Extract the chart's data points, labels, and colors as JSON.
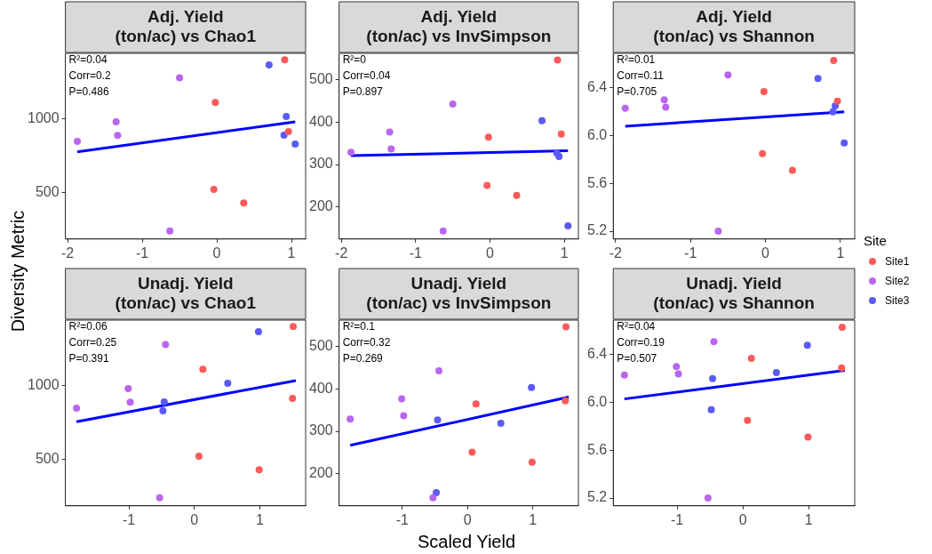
{
  "chart_data": [
    {
      "type": "scatter",
      "title": "Adj. Yield\n(ton/ac) vs Chao1",
      "ylabel": "Diversity Metric",
      "marker": "circle",
      "xlim": [
        -2.03,
        1.19
      ],
      "xticks": [
        -2,
        -1,
        0,
        1
      ],
      "ylim": [
        185,
        1445
      ],
      "yticks": [
        500,
        1000
      ],
      "annotations": [
        "R²=0.04",
        "Corr=0.2",
        "P=0.486"
      ],
      "series": [
        {
          "color": "#fb5a5a",
          "x": [
            -0.02,
            -0.04,
            0.36,
            0.91,
            0.96
          ],
          "values": [
            1112,
            521,
            430,
            1402,
            914
          ]
        },
        {
          "color": "#b966f0",
          "x": [
            -1.87,
            -1.35,
            -1.33,
            -0.5,
            -0.63
          ],
          "values": [
            847,
            980,
            888,
            1279,
            239
          ]
        },
        {
          "color": "#5a5af5",
          "x": [
            0.7,
            0.9,
            0.93,
            1.05
          ],
          "values": [
            1366,
            890,
            1016,
            830
          ]
        },
        {
          "type": "line",
          "marker": "none",
          "color": "#0000ff",
          "x": [
            -1.87,
            1.05
          ],
          "values": [
            777,
            980
          ]
        }
      ]
    },
    {
      "type": "scatter",
      "title": "Adj. Yield\n(ton/ac) vs InvSimpson",
      "marker": "circle",
      "xlim": [
        -2.03,
        1.19
      ],
      "xticks": [
        -2,
        -1,
        0,
        1
      ],
      "ylim": [
        124,
        563
      ],
      "yticks": [
        200,
        300,
        400,
        500
      ],
      "annotations": [
        "R²=0",
        "Corr=0.04",
        "P=0.897"
      ],
      "series": [
        {
          "color": "#fb5a5a",
          "x": [
            -0.02,
            -0.04,
            0.36,
            0.91,
            0.96
          ],
          "values": [
            365,
            251,
            227,
            547,
            372
          ]
        },
        {
          "color": "#b966f0",
          "x": [
            -1.87,
            -1.35,
            -1.33,
            -0.5,
            -0.63
          ],
          "values": [
            329,
            377,
            337,
            443,
            143
          ]
        },
        {
          "color": "#5a5af5",
          "x": [
            0.7,
            0.9,
            0.93,
            1.05
          ],
          "values": [
            404,
            327,
            319,
            155
          ]
        },
        {
          "type": "line",
          "marker": "none",
          "color": "#0000ff",
          "x": [
            -1.87,
            1.05
          ],
          "values": [
            321,
            333
          ]
        }
      ]
    },
    {
      "type": "scatter",
      "title": "Adj. Yield\n(ton/ac) vs Shannon",
      "marker": "circle",
      "legend": "right",
      "legend_title": "Site",
      "xlim": [
        -2.03,
        1.19
      ],
      "xticks": [
        -2,
        -1,
        0,
        1
      ],
      "ylim": [
        5.135,
        6.69
      ],
      "yticks": [
        5.2,
        5.6,
        {
          "value": 6,
          "label": "6.0"
        },
        6.4
      ],
      "annotations": [
        "R²=0.01",
        "Corr=0.11",
        "P=0.705"
      ],
      "series": [
        {
          "name": "Site1",
          "color": "#fb5a5a",
          "x": [
            -0.02,
            -0.04,
            0.36,
            0.91,
            0.96
          ],
          "values": [
            6.37,
            5.85,
            5.71,
            6.63,
            6.29
          ]
        },
        {
          "name": "Site2",
          "color": "#b966f0",
          "x": [
            -1.87,
            -1.35,
            -1.33,
            -0.5,
            -0.63
          ],
          "values": [
            6.23,
            6.3,
            6.24,
            6.51,
            5.2
          ]
        },
        {
          "name": "Site3",
          "color": "#5a5af5",
          "x": [
            0.7,
            0.9,
            0.93,
            1.05
          ],
          "values": [
            6.48,
            6.2,
            6.25,
            5.94
          ]
        },
        {
          "type": "line",
          "marker": "none",
          "color": "#0000ff",
          "x": [
            -1.87,
            1.05
          ],
          "values": [
            6.08,
            6.2
          ]
        }
      ]
    },
    {
      "type": "scatter",
      "title": "Unadj. Yield\n(ton/ac) vs Chao1",
      "marker": "circle",
      "xlim": [
        -1.97,
        1.7
      ],
      "xticks": [
        -1,
        0,
        1
      ],
      "ylim": [
        185,
        1445
      ],
      "yticks": [
        500,
        1000
      ],
      "annotations": [
        "R²=0.06",
        "Corr=0.25",
        "P=0.391"
      ],
      "series": [
        {
          "color": "#fb5a5a",
          "x": [
            0.13,
            0.07,
            0.99,
            1.51,
            1.5
          ],
          "values": [
            1112,
            521,
            430,
            1402,
            914
          ]
        },
        {
          "color": "#b966f0",
          "x": [
            -1.8,
            -1.01,
            -0.98,
            -0.44,
            -0.53
          ],
          "values": [
            847,
            980,
            888,
            1279,
            239
          ]
        },
        {
          "color": "#5a5af5",
          "x": [
            0.98,
            -0.46,
            0.51,
            -0.48
          ],
          "values": [
            1366,
            890,
            1016,
            830
          ]
        },
        {
          "type": "line",
          "marker": "none",
          "color": "#0000ff",
          "x": [
            -1.8,
            1.55
          ],
          "values": [
            756,
            1035
          ]
        }
      ]
    },
    {
      "type": "scatter",
      "title": "Unadj. Yield\n(ton/ac) vs InvSimpson",
      "xlabel": "Scaled Yield",
      "marker": "circle",
      "xlim": [
        -1.97,
        1.7
      ],
      "xticks": [
        -1,
        0,
        1
      ],
      "ylim": [
        124,
        563
      ],
      "yticks": [
        200,
        300,
        400,
        500
      ],
      "annotations": [
        "R²=0.1",
        "Corr=0.32",
        "P=0.269"
      ],
      "series": [
        {
          "color": "#fb5a5a",
          "x": [
            0.13,
            0.07,
            0.99,
            1.51,
            1.5
          ],
          "values": [
            365,
            251,
            227,
            547,
            372
          ]
        },
        {
          "color": "#b966f0",
          "x": [
            -1.8,
            -1.01,
            -0.98,
            -0.44,
            -0.53
          ],
          "values": [
            329,
            377,
            337,
            443,
            143
          ]
        },
        {
          "color": "#5a5af5",
          "x": [
            0.98,
            -0.46,
            0.51,
            -0.48
          ],
          "values": [
            404,
            327,
            319,
            155
          ]
        },
        {
          "type": "line",
          "marker": "none",
          "color": "#0000ff",
          "x": [
            -1.8,
            1.55
          ],
          "values": [
            267,
            381
          ]
        }
      ]
    },
    {
      "type": "scatter",
      "title": "Unadj. Yield\n(ton/ac) vs Shannon",
      "marker": "circle",
      "xlim": [
        -1.97,
        1.7
      ],
      "xticks": [
        -1,
        0,
        1
      ],
      "ylim": [
        5.135,
        6.69
      ],
      "yticks": [
        5.2,
        5.6,
        {
          "value": 6,
          "label": "6.0"
        },
        6.4
      ],
      "annotations": [
        "R²=0.04",
        "Corr=0.19",
        "P=0.507"
      ],
      "series": [
        {
          "color": "#fb5a5a",
          "x": [
            0.13,
            0.07,
            0.99,
            1.51,
            1.5
          ],
          "values": [
            6.37,
            5.85,
            5.71,
            6.63,
            6.29
          ]
        },
        {
          "color": "#b966f0",
          "x": [
            -1.8,
            -1.01,
            -0.98,
            -0.44,
            -0.53
          ],
          "values": [
            6.23,
            6.3,
            6.24,
            6.51,
            5.2
          ]
        },
        {
          "color": "#5a5af5",
          "x": [
            0.98,
            -0.46,
            0.51,
            -0.48
          ],
          "values": [
            6.48,
            6.2,
            6.25,
            5.94
          ]
        },
        {
          "type": "line",
          "marker": "none",
          "color": "#0000ff",
          "x": [
            -1.8,
            1.55
          ],
          "values": [
            6.03,
            6.27
          ]
        }
      ]
    }
  ]
}
